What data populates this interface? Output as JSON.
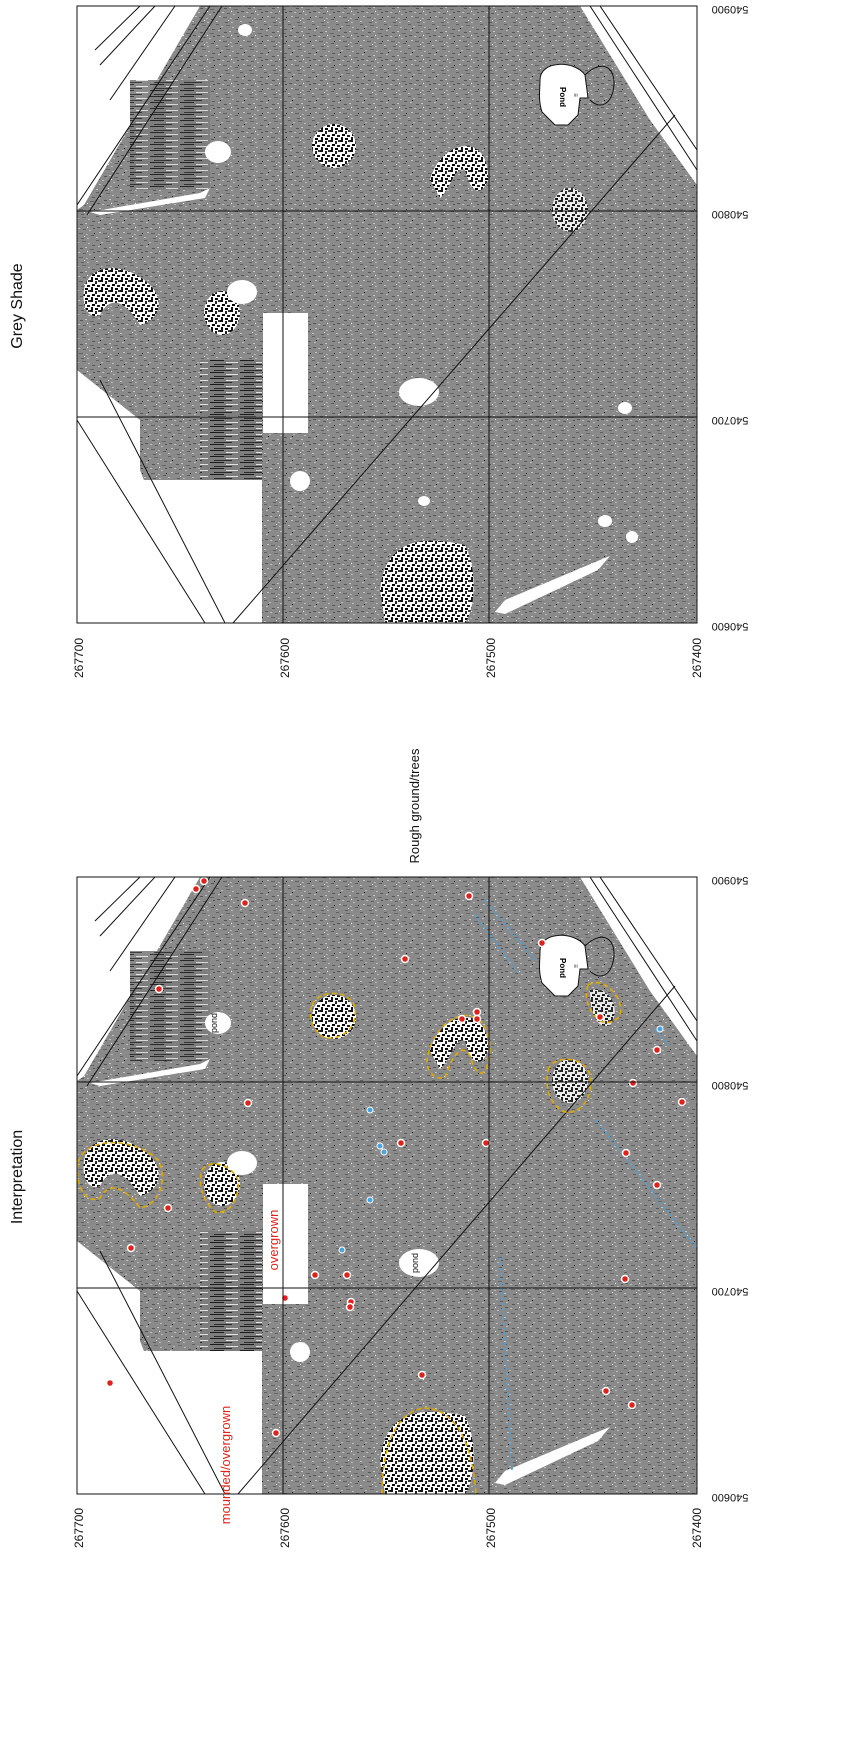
{
  "panels": {
    "grey_shade": {
      "title": "Grey Shade"
    },
    "interpretation": {
      "title": "Interpretation"
    }
  },
  "axis_labels": {
    "northing": [
      "267700",
      "267600",
      "267500",
      "267400"
    ],
    "easting": [
      "540600",
      "540700",
      "540800",
      "540900"
    ]
  },
  "annotations": {
    "rough_ground": "Rough ground/trees",
    "pond": "pond",
    "pond_caps": "Pond",
    "overgrown": "overgrown",
    "mounded": "mounded/overgrown"
  },
  "legend_colors": {
    "outline": "#e0a800",
    "point": "#e0221b",
    "blue_feature": "#4aa3df",
    "red_text": "#e0221b"
  }
}
